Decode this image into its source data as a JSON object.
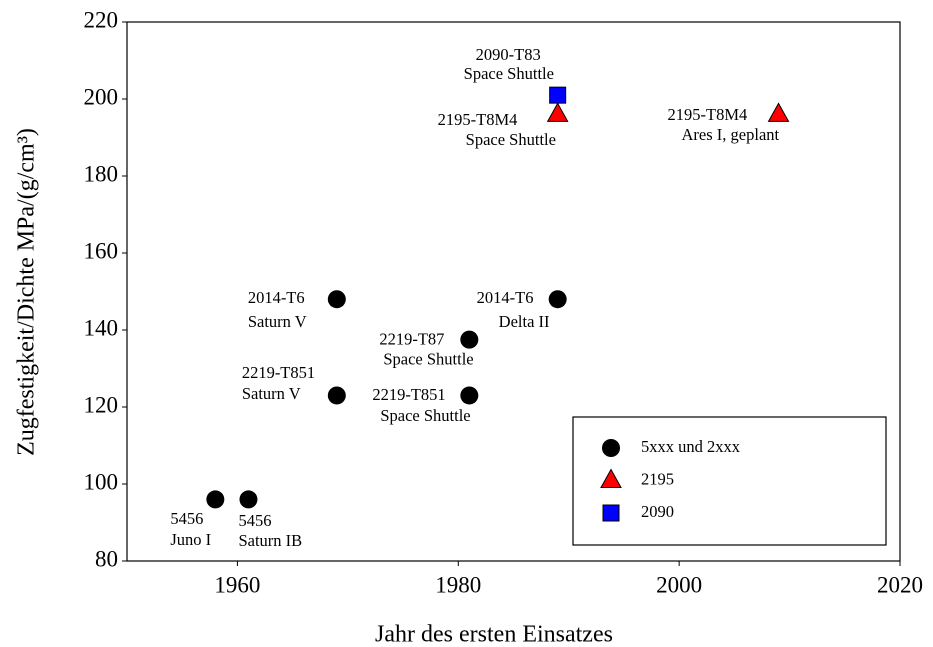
{
  "chart_data": {
    "type": "scatter",
    "xlabel": "Jahr des ersten Einsatzes",
    "ylabel": "Zugfestigkeit/Dichte MPa/(g/cm³)",
    "xlim": [
      1950,
      2020
    ],
    "xticks": [
      1960,
      1980,
      2000,
      2020
    ],
    "ylim": [
      80,
      220
    ],
    "yticks": [
      80,
      100,
      120,
      140,
      160,
      180,
      200,
      220
    ],
    "legend": "lower right",
    "series": [
      {
        "name": "5xxx und 2xxx",
        "color": "#000000",
        "marker": "circle",
        "x": [
          1958,
          1961,
          1969,
          1969,
          1981,
          1981,
          1989
        ],
        "values": [
          96,
          96,
          148,
          123,
          137.5,
          123,
          148
        ],
        "labels": [
          [
            "5456",
            "Juno I"
          ],
          [
            "5456",
            "Saturn IB"
          ],
          [
            "2014-T6",
            "Saturn V"
          ],
          [
            "2219-T851",
            "Saturn V"
          ],
          [
            "2219-T87",
            "Space Shuttle"
          ],
          [
            "2219-T851",
            "Space Shuttle"
          ],
          [
            "2014-T6",
            "Delta II"
          ]
        ]
      },
      {
        "name": "2195",
        "color": "#ff0000",
        "marker": "triangle",
        "x": [
          1989,
          2009
        ],
        "values": [
          196,
          196
        ],
        "labels": [
          [
            "2195-T8M4",
            "Space Shuttle"
          ],
          [
            "2195-T8M4",
            "Ares I, geplant"
          ]
        ]
      },
      {
        "name": "2090",
        "color": "#0000ff",
        "marker": "square",
        "x": [
          1989
        ],
        "values": [
          201
        ],
        "labels": [
          [
            "2090-T83",
            "Space Shuttle"
          ]
        ]
      }
    ]
  }
}
